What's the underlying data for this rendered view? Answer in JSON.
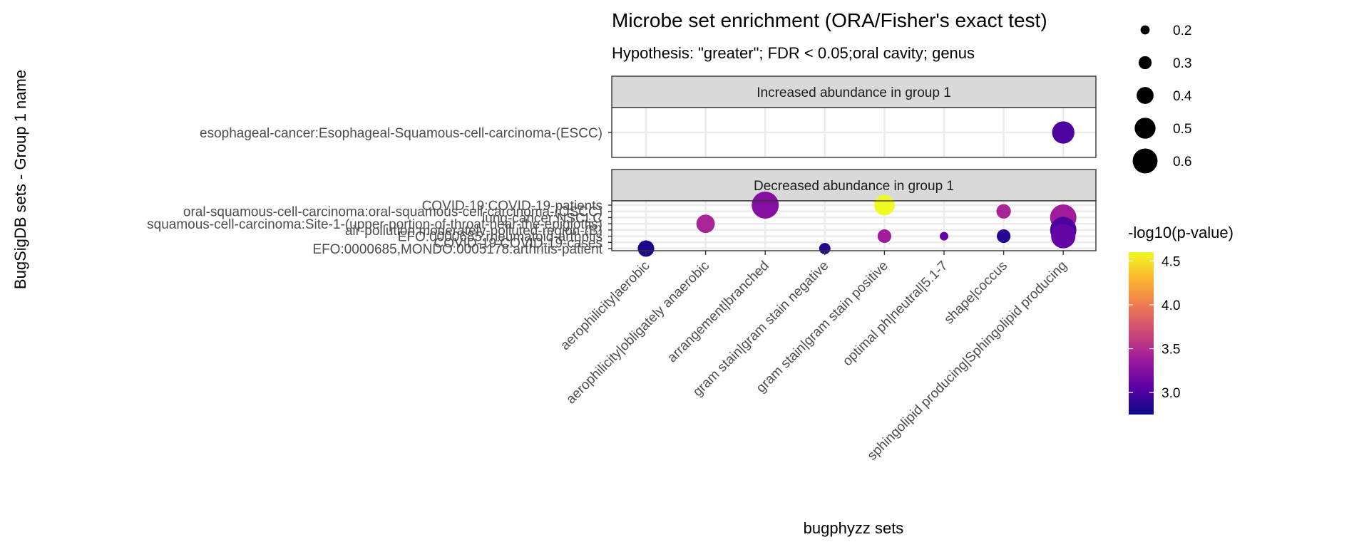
{
  "chart_data": {
    "type": "scatter",
    "title": "Microbe set enrichment (ORA/Fisher's exact test)",
    "subtitle": "Hypothesis: \"greater\"; FDR < 0.05;oral cavity; genus",
    "xlabel": "bugphyzz sets",
    "ylabel": "BugSigDB sets - Group 1 name",
    "x_categories": [
      "aerophilicity|aerobic",
      "aerophilicity|obligately anaerobic",
      "arrangement|branched",
      "gram stain|gram stain negative",
      "gram stain|gram stain positive",
      "optimal ph|neutral|5.1-7",
      "shape|coccus",
      "sphingolipid producing|Sphingolipid producing"
    ],
    "panels": [
      {
        "strip": "Increased abundance in group 1",
        "y_categories": [
          "esophageal-cancer:Esophageal-Squamous-cell-carcinoma-(ESCC)"
        ],
        "points": [
          {
            "x": "sphingolipid producing|Sphingolipid producing",
            "y": "esophageal-cancer:Esophageal-Squamous-cell-carcinoma-(ESCC)",
            "size": 0.5,
            "color": 3.0
          }
        ]
      },
      {
        "strip": "Decreased abundance in group 1",
        "y_categories": [
          "EFO:0000685,MONDO:0005178:arthritis-patient",
          "COVID-19:COVID-19-cases",
          "EFO:0000685:rheumatoid-arthritis",
          "air-pollution:moderately-polluted-region-(B)",
          "squamous-cell-carcinoma:Site-1-(upper-portion-of-throat-near-the-epiglottis)",
          "lung-cancer:NSCLC",
          "oral-squamous-cell-carcinoma:oral-squamous-cell-carcinoma-(OSCC)",
          "COVID-19:COVID-19-patients"
        ],
        "points": [
          {
            "x": "aerophilicity|aerobic",
            "y": "EFO:0000685,MONDO:0005178:arthritis-patient",
            "size": 0.35,
            "color": 2.8
          },
          {
            "x": "aerophilicity|obligately anaerobic",
            "y": "squamous-cell-carcinoma:Site-1-(upper-portion-of-throat-near-the-epiglottis)",
            "size": 0.4,
            "color": 3.45
          },
          {
            "x": "arrangement|branched",
            "y": "COVID-19:COVID-19-patients",
            "size": 0.62,
            "color": 3.25
          },
          {
            "x": "gram stain|gram stain negative",
            "y": "EFO:0000685,MONDO:0005178:arthritis-patient",
            "size": 0.22,
            "color": 2.85
          },
          {
            "x": "gram stain|gram stain positive",
            "y": "COVID-19:COVID-19-patients",
            "size": 0.45,
            "color": 4.6
          },
          {
            "x": "gram stain|gram stain positive",
            "y": "EFO:0000685:rheumatoid-arthritis",
            "size": 0.28,
            "color": 3.4
          },
          {
            "x": "optimal ph|neutral|5.1-7",
            "y": "EFO:0000685:rheumatoid-arthritis",
            "size": 0.15,
            "color": 3.1
          },
          {
            "x": "shape|coccus",
            "y": "oral-squamous-cell-carcinoma:oral-squamous-cell-carcinoma-(OSCC)",
            "size": 0.3,
            "color": 3.45
          },
          {
            "x": "shape|coccus",
            "y": "EFO:0000685:rheumatoid-arthritis",
            "size": 0.28,
            "color": 2.85
          },
          {
            "x": "sphingolipid producing|Sphingolipid producing",
            "y": "lung-cancer:NSCLC",
            "size": 0.6,
            "color": 3.4
          },
          {
            "x": "sphingolipid producing|Sphingolipid producing",
            "y": "air-pollution:moderately-polluted-region-(B)",
            "size": 0.6,
            "color": 3.0
          },
          {
            "x": "sphingolipid producing|Sphingolipid producing",
            "y": "EFO:0000685:rheumatoid-arthritis",
            "size": 0.55,
            "color": 3.1
          }
        ]
      }
    ],
    "size_legend": {
      "breaks": [
        0.2,
        0.3,
        0.4,
        0.5,
        0.6
      ]
    },
    "color_legend": {
      "title": "-log10(p-value)",
      "breaks": [
        3.0,
        3.5,
        4.0,
        4.5
      ],
      "limits": [
        2.75,
        4.6
      ],
      "colors": [
        "#0d0887",
        "#5c01a6",
        "#9c179e",
        "#cc4778",
        "#ed7953",
        "#fdb42f",
        "#f0f921"
      ]
    },
    "grid": true,
    "legend_position": "right"
  }
}
